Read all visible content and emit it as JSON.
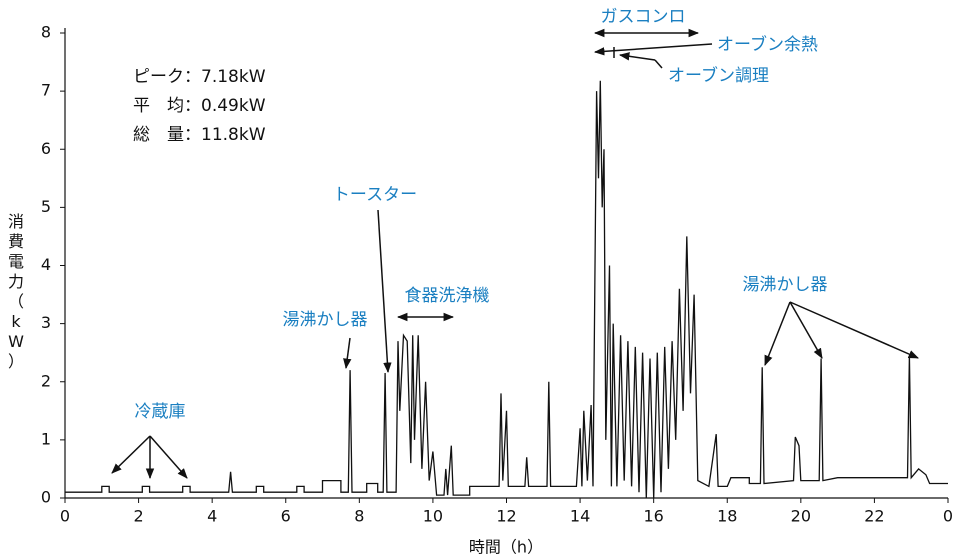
{
  "chart_data": {
    "type": "line",
    "x_label": "時間（h）",
    "y_label": "消費電力（kW）",
    "stats": [
      "ピーク：7.18kW",
      "平　均：0.49kW",
      "総　量：11.8kW"
    ],
    "annotations": [
      "冷蔵庫",
      "湯沸かし器",
      "トースター",
      "食器洗浄機",
      "ガスコンロ",
      "オーブン余熱",
      "オーブン調理",
      "湯沸かし器"
    ],
    "xlim": [
      0,
      24
    ],
    "ylim": [
      0,
      8
    ],
    "xticks": [
      0,
      2,
      4,
      6,
      8,
      10,
      12,
      14,
      16,
      18,
      20,
      22,
      {
        "value": 24,
        "label": "0"
      }
    ],
    "yticks": [
      0,
      1,
      2,
      3,
      4,
      5,
      6,
      7,
      8
    ],
    "series": [
      {
        "color": "#111111",
        "x": [
          0,
          1.0,
          1.0,
          1.2,
          1.2,
          2.1,
          2.1,
          2.3,
          2.3,
          3.2,
          3.2,
          3.4,
          3.4,
          4.45,
          4.5,
          4.55,
          5.2,
          5.2,
          5.4,
          5.4,
          6.3,
          6.3,
          6.5,
          6.5,
          7.0,
          7.0,
          7.5,
          7.5,
          7.7,
          7.75,
          7.8,
          8.2,
          8.2,
          8.5,
          8.5,
          8.65,
          8.7,
          8.75,
          9.0,
          9.05,
          9.1,
          9.2,
          9.3,
          9.4,
          9.45,
          9.5,
          9.6,
          9.7,
          9.8,
          9.9,
          10.0,
          10.1,
          10.3,
          10.35,
          10.4,
          10.5,
          10.55,
          11.0,
          11.0,
          11.8,
          11.85,
          11.9,
          12.0,
          12.05,
          12.5,
          12.55,
          12.6,
          13.1,
          13.15,
          13.2,
          13.9,
          14.0,
          14.05,
          14.1,
          14.2,
          14.3,
          14.35,
          14.45,
          14.5,
          14.55,
          14.6,
          14.65,
          14.7,
          14.8,
          14.85,
          14.9,
          15.0,
          15.1,
          15.2,
          15.3,
          15.4,
          15.5,
          15.6,
          15.7,
          15.8,
          15.9,
          16.0,
          16.1,
          16.2,
          16.3,
          16.4,
          16.5,
          16.6,
          16.7,
          16.8,
          16.9,
          17.0,
          17.1,
          17.2,
          17.5,
          17.7,
          17.75,
          18.0,
          18.1,
          18.6,
          18.6,
          18.9,
          18.95,
          19.0,
          19.8,
          19.85,
          19.95,
          20.0,
          20.5,
          20.55,
          20.6,
          21.0,
          22.0,
          22.9,
          22.95,
          23.0,
          23.2,
          23.4,
          23.5,
          24
        ],
        "values": [
          0.1,
          0.1,
          0.2,
          0.2,
          0.1,
          0.1,
          0.2,
          0.2,
          0.1,
          0.1,
          0.2,
          0.2,
          0.1,
          0.1,
          0.45,
          0.1,
          0.1,
          0.2,
          0.2,
          0.1,
          0.1,
          0.2,
          0.2,
          0.1,
          0.1,
          0.3,
          0.3,
          0.1,
          0.1,
          2.2,
          0.1,
          0.1,
          0.25,
          0.25,
          0.1,
          0.1,
          2.15,
          0.1,
          0.1,
          2.7,
          1.5,
          2.8,
          2.7,
          0.6,
          2.8,
          1.0,
          2.8,
          0.5,
          2.0,
          0.3,
          0.8,
          0.05,
          0.05,
          0.5,
          0.05,
          0.9,
          0.05,
          0.05,
          0.2,
          0.2,
          1.8,
          0.3,
          1.5,
          0.2,
          0.2,
          0.7,
          0.2,
          0.2,
          2.0,
          0.2,
          0.2,
          1.2,
          0.2,
          1.5,
          0.3,
          1.6,
          0.2,
          7.0,
          5.5,
          7.18,
          5.0,
          6.0,
          1.0,
          4.0,
          0.2,
          3.0,
          0.2,
          2.8,
          0.3,
          2.7,
          0.2,
          2.6,
          0.1,
          2.5,
          0.0,
          2.4,
          0.0,
          2.5,
          0.1,
          2.6,
          0.5,
          2.7,
          1.0,
          3.6,
          1.5,
          4.5,
          1.8,
          3.5,
          0.3,
          0.2,
          1.1,
          0.2,
          0.2,
          0.35,
          0.35,
          0.25,
          0.25,
          2.25,
          0.25,
          0.3,
          1.05,
          0.9,
          0.3,
          0.3,
          2.4,
          0.3,
          0.35,
          0.35,
          0.35,
          2.45,
          0.35,
          0.5,
          0.4,
          0.25,
          0.25
        ]
      }
    ]
  }
}
